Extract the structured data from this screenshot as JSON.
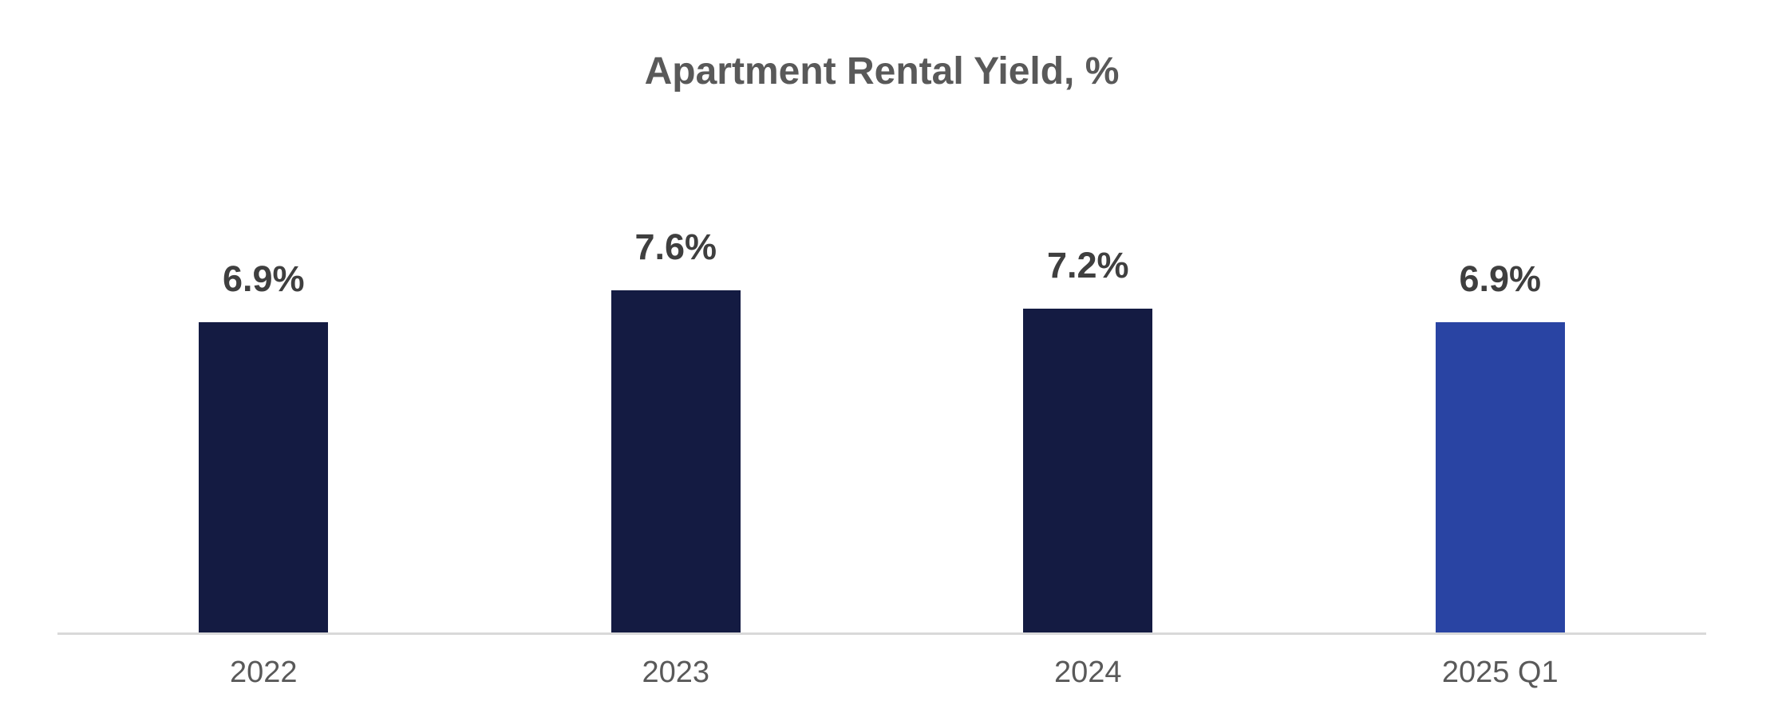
{
  "title": "Apartment Rental Yield, %",
  "colors": {
    "bar_navy": "#141b42",
    "bar_royal_blue": "#2944a3",
    "title_text": "#595959",
    "axis_label_text": "#595959",
    "data_label_text": "#3f3f3f",
    "axis_line": "#d9d9d9",
    "background": "#ffffff"
  },
  "chart_data": {
    "type": "bar",
    "title": "Apartment Rental Yield, %",
    "categories": [
      "2022",
      "2023",
      "2024",
      "2025 Q1"
    ],
    "values": [
      6.9,
      7.6,
      7.2,
      6.9
    ],
    "data_labels": [
      "6.9%",
      "7.6%",
      "7.2%",
      "6.9%"
    ],
    "bar_colors": [
      "#141b42",
      "#141b42",
      "#141b42",
      "#2944a3"
    ],
    "xlabel": "",
    "ylabel": "",
    "ylim": [
      0,
      8.4
    ],
    "grid": false,
    "legend": false,
    "y_axis_visible": false,
    "x_axis_line_visible": true,
    "data_label_position": "above-bar"
  }
}
